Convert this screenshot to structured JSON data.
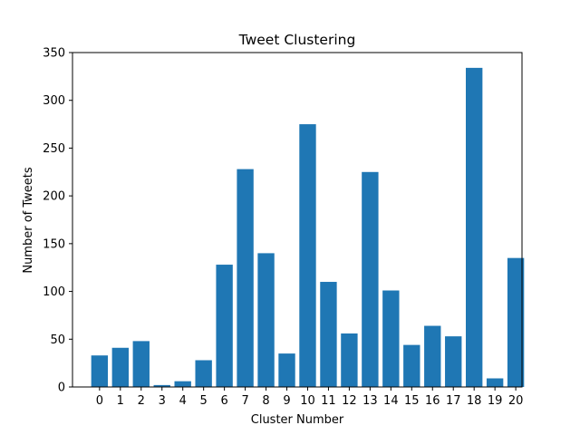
{
  "chart_data": {
    "type": "bar",
    "title": "Tweet Clustering",
    "xlabel": "Cluster Number",
    "ylabel": "Number of Tweets",
    "categories": [
      "0",
      "1",
      "2",
      "3",
      "4",
      "5",
      "6",
      "7",
      "8",
      "9",
      "10",
      "11",
      "12",
      "13",
      "14",
      "15",
      "16",
      "17",
      "18",
      "19",
      "20"
    ],
    "values": [
      33,
      41,
      48,
      2,
      6,
      28,
      128,
      228,
      140,
      35,
      275,
      110,
      56,
      225,
      101,
      44,
      64,
      53,
      334,
      9,
      135
    ],
    "ylim": [
      0,
      350
    ],
    "yticks": [
      0,
      50,
      100,
      150,
      200,
      250,
      300,
      350
    ],
    "grid": false,
    "colors": {
      "bar": "#1f77b4",
      "axis": "#000000",
      "background": "#ffffff"
    }
  }
}
